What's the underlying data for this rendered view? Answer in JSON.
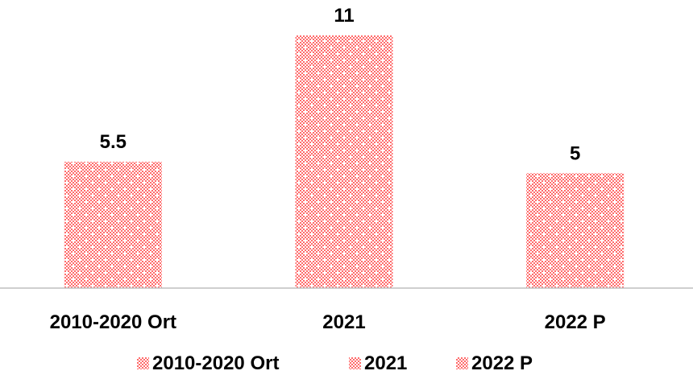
{
  "chart_data": {
    "type": "bar",
    "categories": [
      "2010-2020 Ort",
      "2021",
      "2022 P"
    ],
    "values": [
      5.5,
      11,
      5
    ],
    "data_labels": [
      "5.5",
      "11",
      "5"
    ],
    "title": "",
    "xlabel": "",
    "ylabel": "",
    "ylim": [
      0,
      11
    ],
    "grid": false,
    "legend": {
      "position": "bottom",
      "entries": [
        "2010-2020 Ort",
        "2021",
        "2022 P"
      ]
    },
    "colors": {
      "bar": "#ff6b6b",
      "pattern_dot": "#ffffff",
      "axis": "#bfbfbf"
    }
  }
}
